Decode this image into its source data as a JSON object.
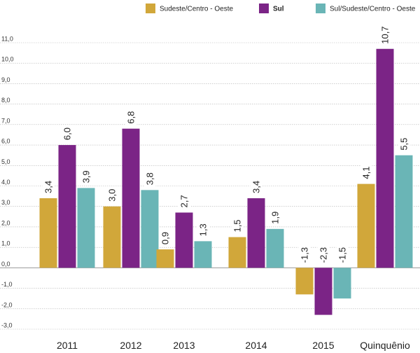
{
  "chart_data": {
    "type": "bar",
    "title": "",
    "xlabel": "",
    "ylabel": "",
    "categories": [
      "2011",
      "2012",
      "2013",
      "2014",
      "2015",
      "Quinquênio"
    ],
    "series": [
      {
        "name": "Sudeste/Centro - Oeste",
        "color": "#d1a73a",
        "values": [
          3.4,
          3.0,
          0.9,
          1.5,
          -1.3,
          4.1
        ],
        "labels": [
          "3,4",
          "3,0",
          "0,9",
          "1,5",
          "-1,3",
          "4,1"
        ]
      },
      {
        "name": "Sul",
        "color": "#7b2486",
        "values": [
          6.0,
          6.8,
          2.7,
          3.4,
          -2.3,
          10.7
        ],
        "labels": [
          "6,0",
          "6,8",
          "2,7",
          "3,4",
          "-2,3",
          "10,7"
        ]
      },
      {
        "name": "Sul/Sudeste/Centro - Oeste",
        "color": "#6ab5b6",
        "values": [
          3.9,
          3.8,
          1.3,
          1.9,
          -1.5,
          5.5
        ],
        "labels": [
          "3,9",
          "3,8",
          "1,3",
          "1,9",
          "-1,5",
          "5,5"
        ]
      }
    ],
    "ylim": [
      -3.0,
      11.0
    ],
    "yticks": [
      "11,0",
      "10,0",
      "9,0",
      "8,0",
      "7,0",
      "6,0",
      "5,0",
      "4,0",
      "3,0",
      "2,0",
      "1,0",
      "0,0",
      "-1,0",
      "-2,0",
      "-3,0"
    ],
    "ytick_values": [
      11,
      10,
      9,
      8,
      7,
      6,
      5,
      4,
      3,
      2,
      1,
      0,
      -1,
      -2,
      -3
    ],
    "grid": true,
    "legend": "top-right",
    "data_label_rotation": "vertical"
  }
}
